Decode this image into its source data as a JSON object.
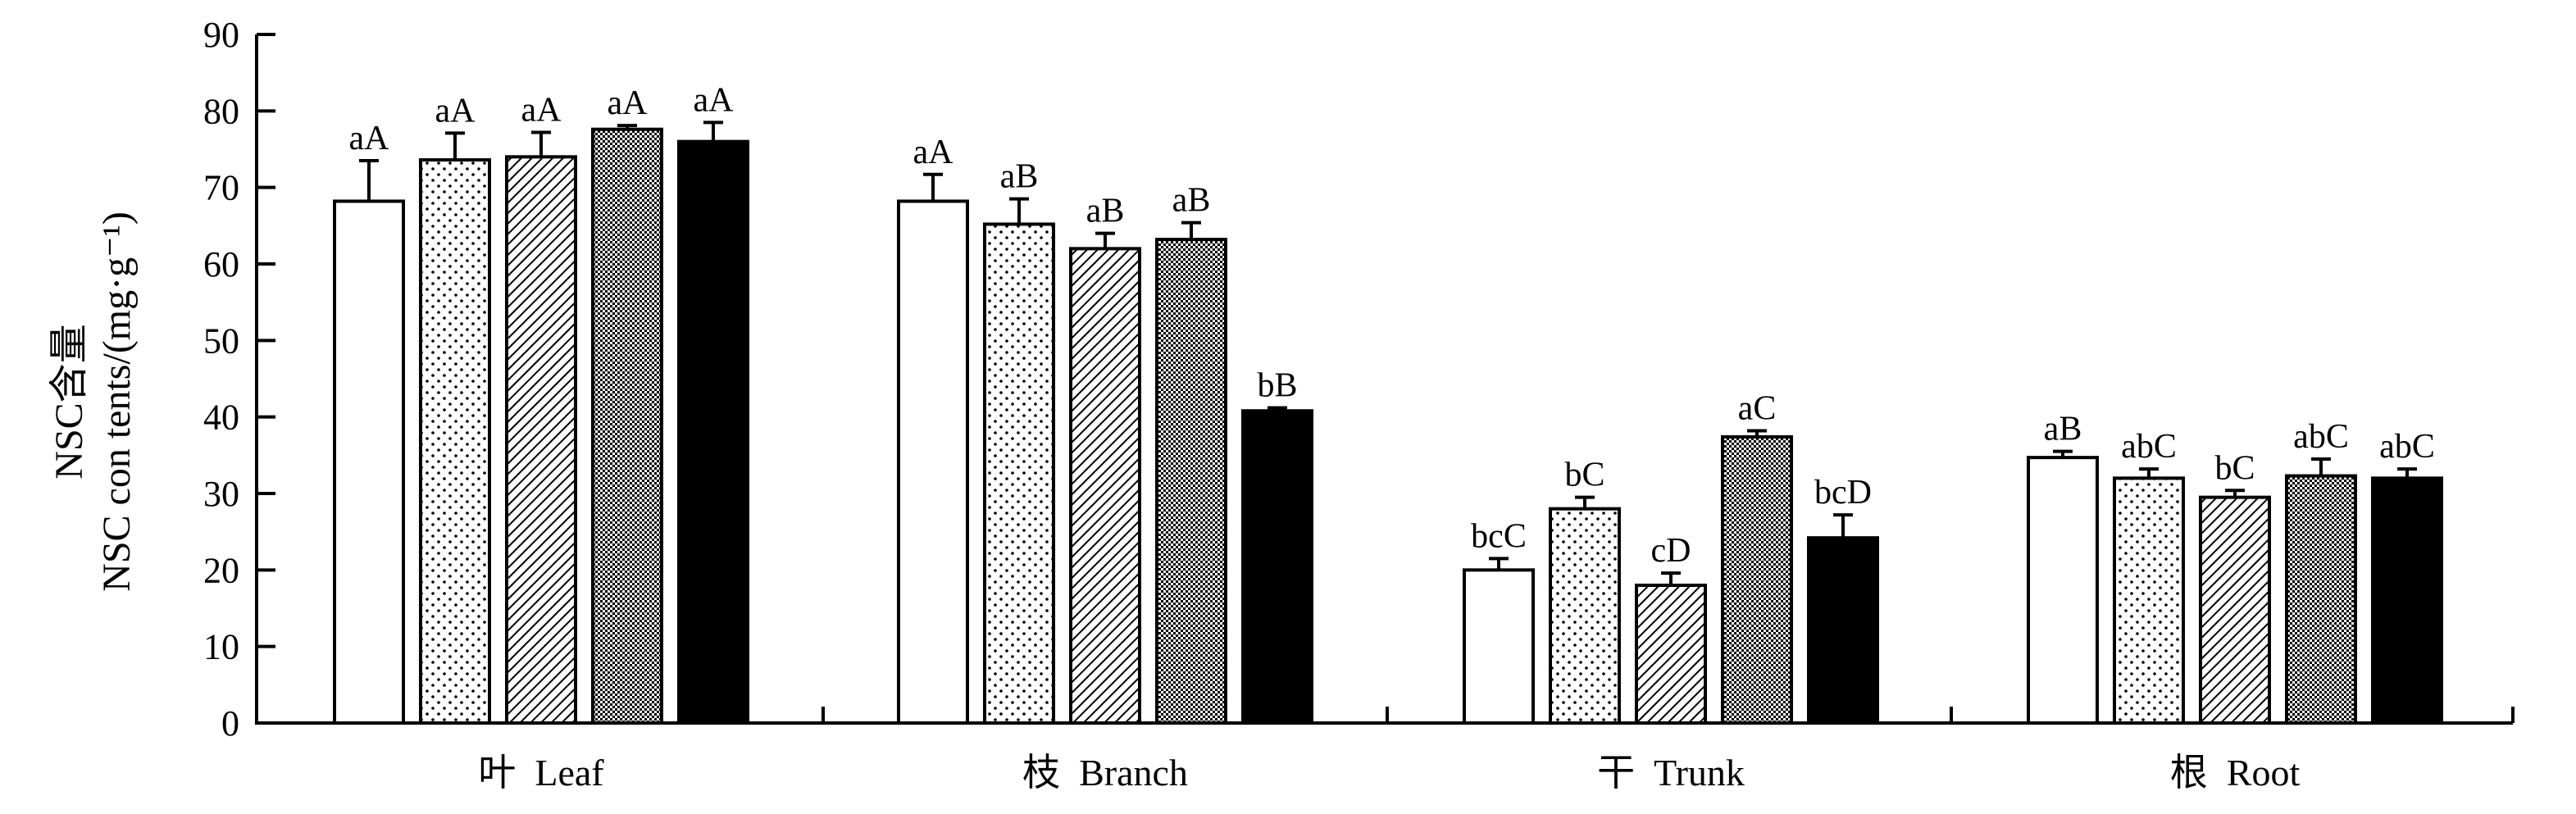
{
  "chart_data": {
    "type": "bar",
    "ylabel_line1": "NSC含量",
    "ylabel_line2": "NSC con tents/(mg·g⁻¹)",
    "ylim": [
      0,
      90
    ],
    "yticks": [
      0,
      10,
      20,
      30,
      40,
      50,
      60,
      70,
      80,
      90
    ],
    "categories": [
      "叶  Leaf",
      "枝  Branch",
      "干  Trunk",
      "根  Root"
    ],
    "series": [
      {
        "fill": "white",
        "values": [
          68.2,
          68.2,
          20.0,
          34.7
        ],
        "errors": [
          5.3,
          3.5,
          1.5,
          0.8
        ],
        "labels": [
          "aA",
          "aA",
          "bcC",
          "aB"
        ]
      },
      {
        "fill": "dots",
        "values": [
          73.6,
          65.2,
          28.0,
          32.0
        ],
        "errors": [
          3.5,
          3.3,
          1.5,
          1.2
        ],
        "labels": [
          "aA",
          "aB",
          "bC",
          "abC"
        ]
      },
      {
        "fill": "diag",
        "values": [
          74.0,
          62.0,
          18.0,
          29.5
        ],
        "errors": [
          3.2,
          2.0,
          1.6,
          0.9
        ],
        "labels": [
          "aA",
          "aB",
          "cD",
          "bC"
        ]
      },
      {
        "fill": "dense",
        "values": [
          77.6,
          63.2,
          37.4,
          32.3
        ],
        "errors": [
          0.5,
          2.2,
          0.8,
          2.2
        ],
        "labels": [
          "aA",
          "aB",
          "aC",
          "abC"
        ]
      },
      {
        "fill": "black",
        "values": [
          76.0,
          40.8,
          24.2,
          32.0
        ],
        "errors": [
          2.5,
          0.4,
          3.0,
          1.2
        ],
        "labels": [
          "aA",
          "bB",
          "bcD",
          "abC"
        ]
      }
    ],
    "grid": false,
    "legend": "none"
  }
}
